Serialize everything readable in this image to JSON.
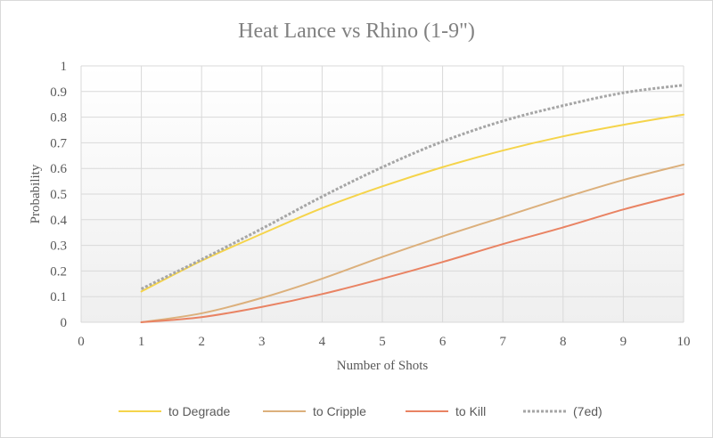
{
  "chart_data": {
    "type": "line",
    "title": "Heat Lance vs Rhino (1-9\")",
    "xlabel": "Number of Shots",
    "ylabel": "Probability",
    "xlim": [
      0,
      10
    ],
    "ylim": [
      0,
      1
    ],
    "x_ticks": [
      "0",
      "1",
      "2",
      "3",
      "4",
      "5",
      "6",
      "7",
      "8",
      "9",
      "10"
    ],
    "y_ticks": [
      "0",
      "0.1",
      "0.2",
      "0.3",
      "0.4",
      "0.5",
      "0.6",
      "0.7",
      "0.8",
      "0.9",
      "1"
    ],
    "grid": true,
    "legend_position": "bottom",
    "x": [
      1,
      2,
      3,
      4,
      5,
      6,
      7,
      8,
      9,
      10
    ],
    "series": [
      {
        "name": "to Degrade",
        "color": "#f5d44b",
        "style": "solid",
        "values": [
          0.12,
          0.24,
          0.345,
          0.445,
          0.53,
          0.605,
          0.67,
          0.725,
          0.77,
          0.81
        ]
      },
      {
        "name": "to Cripple",
        "color": "#dcb07c",
        "style": "solid",
        "values": [
          0.0,
          0.035,
          0.095,
          0.17,
          0.255,
          0.335,
          0.41,
          0.485,
          0.555,
          0.615
        ]
      },
      {
        "name": "to Kill",
        "color": "#e98363",
        "style": "solid",
        "values": [
          0.0,
          0.02,
          0.06,
          0.11,
          0.17,
          0.235,
          0.305,
          0.37,
          0.44,
          0.5
        ]
      },
      {
        "name": "(7ed)",
        "color": "#a6a6a6",
        "style": "dotted",
        "values": [
          0.13,
          0.245,
          0.365,
          0.49,
          0.605,
          0.705,
          0.785,
          0.845,
          0.895,
          0.925
        ]
      }
    ]
  }
}
